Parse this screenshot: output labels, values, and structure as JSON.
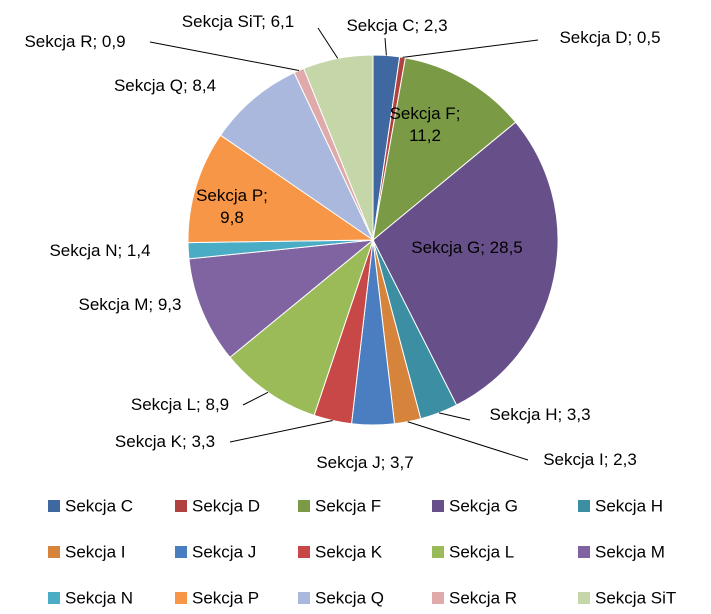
{
  "chart_data": {
    "type": "pie",
    "categories": [
      "Sekcja C",
      "Sekcja D",
      "Sekcja F",
      "Sekcja G",
      "Sekcja H",
      "Sekcja I",
      "Sekcja J",
      "Sekcja K",
      "Sekcja L",
      "Sekcja M",
      "Sekcja N",
      "Sekcja P",
      "Sekcja Q",
      "Sekcja R",
      "Sekcja SiT"
    ],
    "values": [
      2.3,
      0.5,
      11.2,
      28.5,
      3.3,
      2.3,
      3.7,
      3.3,
      8.9,
      9.3,
      1.4,
      9.8,
      8.4,
      0.9,
      6.1
    ],
    "value_labels": [
      "Sekcja C; 2,3",
      "Sekcja D; 0,5",
      "Sekcja F; 11,2",
      "Sekcja G; 28,5",
      "Sekcja H; 3,3",
      "Sekcja I; 2,3",
      "Sekcja J; 3,7",
      "Sekcja K; 3,3",
      "Sekcja L; 8,9",
      "Sekcja M; 9,3",
      "Sekcja N; 1,4",
      "Sekcja P; 9,8",
      "Sekcja Q; 8,4",
      "Sekcja R; 0,9",
      "Sekcja SiT; 6,1"
    ],
    "colors": [
      "#3f67a0",
      "#b0413e",
      "#7a9a45",
      "#67508a",
      "#3c8fa3",
      "#d6833c",
      "#4a7ec0",
      "#c84747",
      "#9bbb59",
      "#8064a2",
      "#4bacc6",
      "#f79646",
      "#a9b8dc",
      "#e0aaaa",
      "#c5d6a8"
    ],
    "legend": "bottom"
  }
}
